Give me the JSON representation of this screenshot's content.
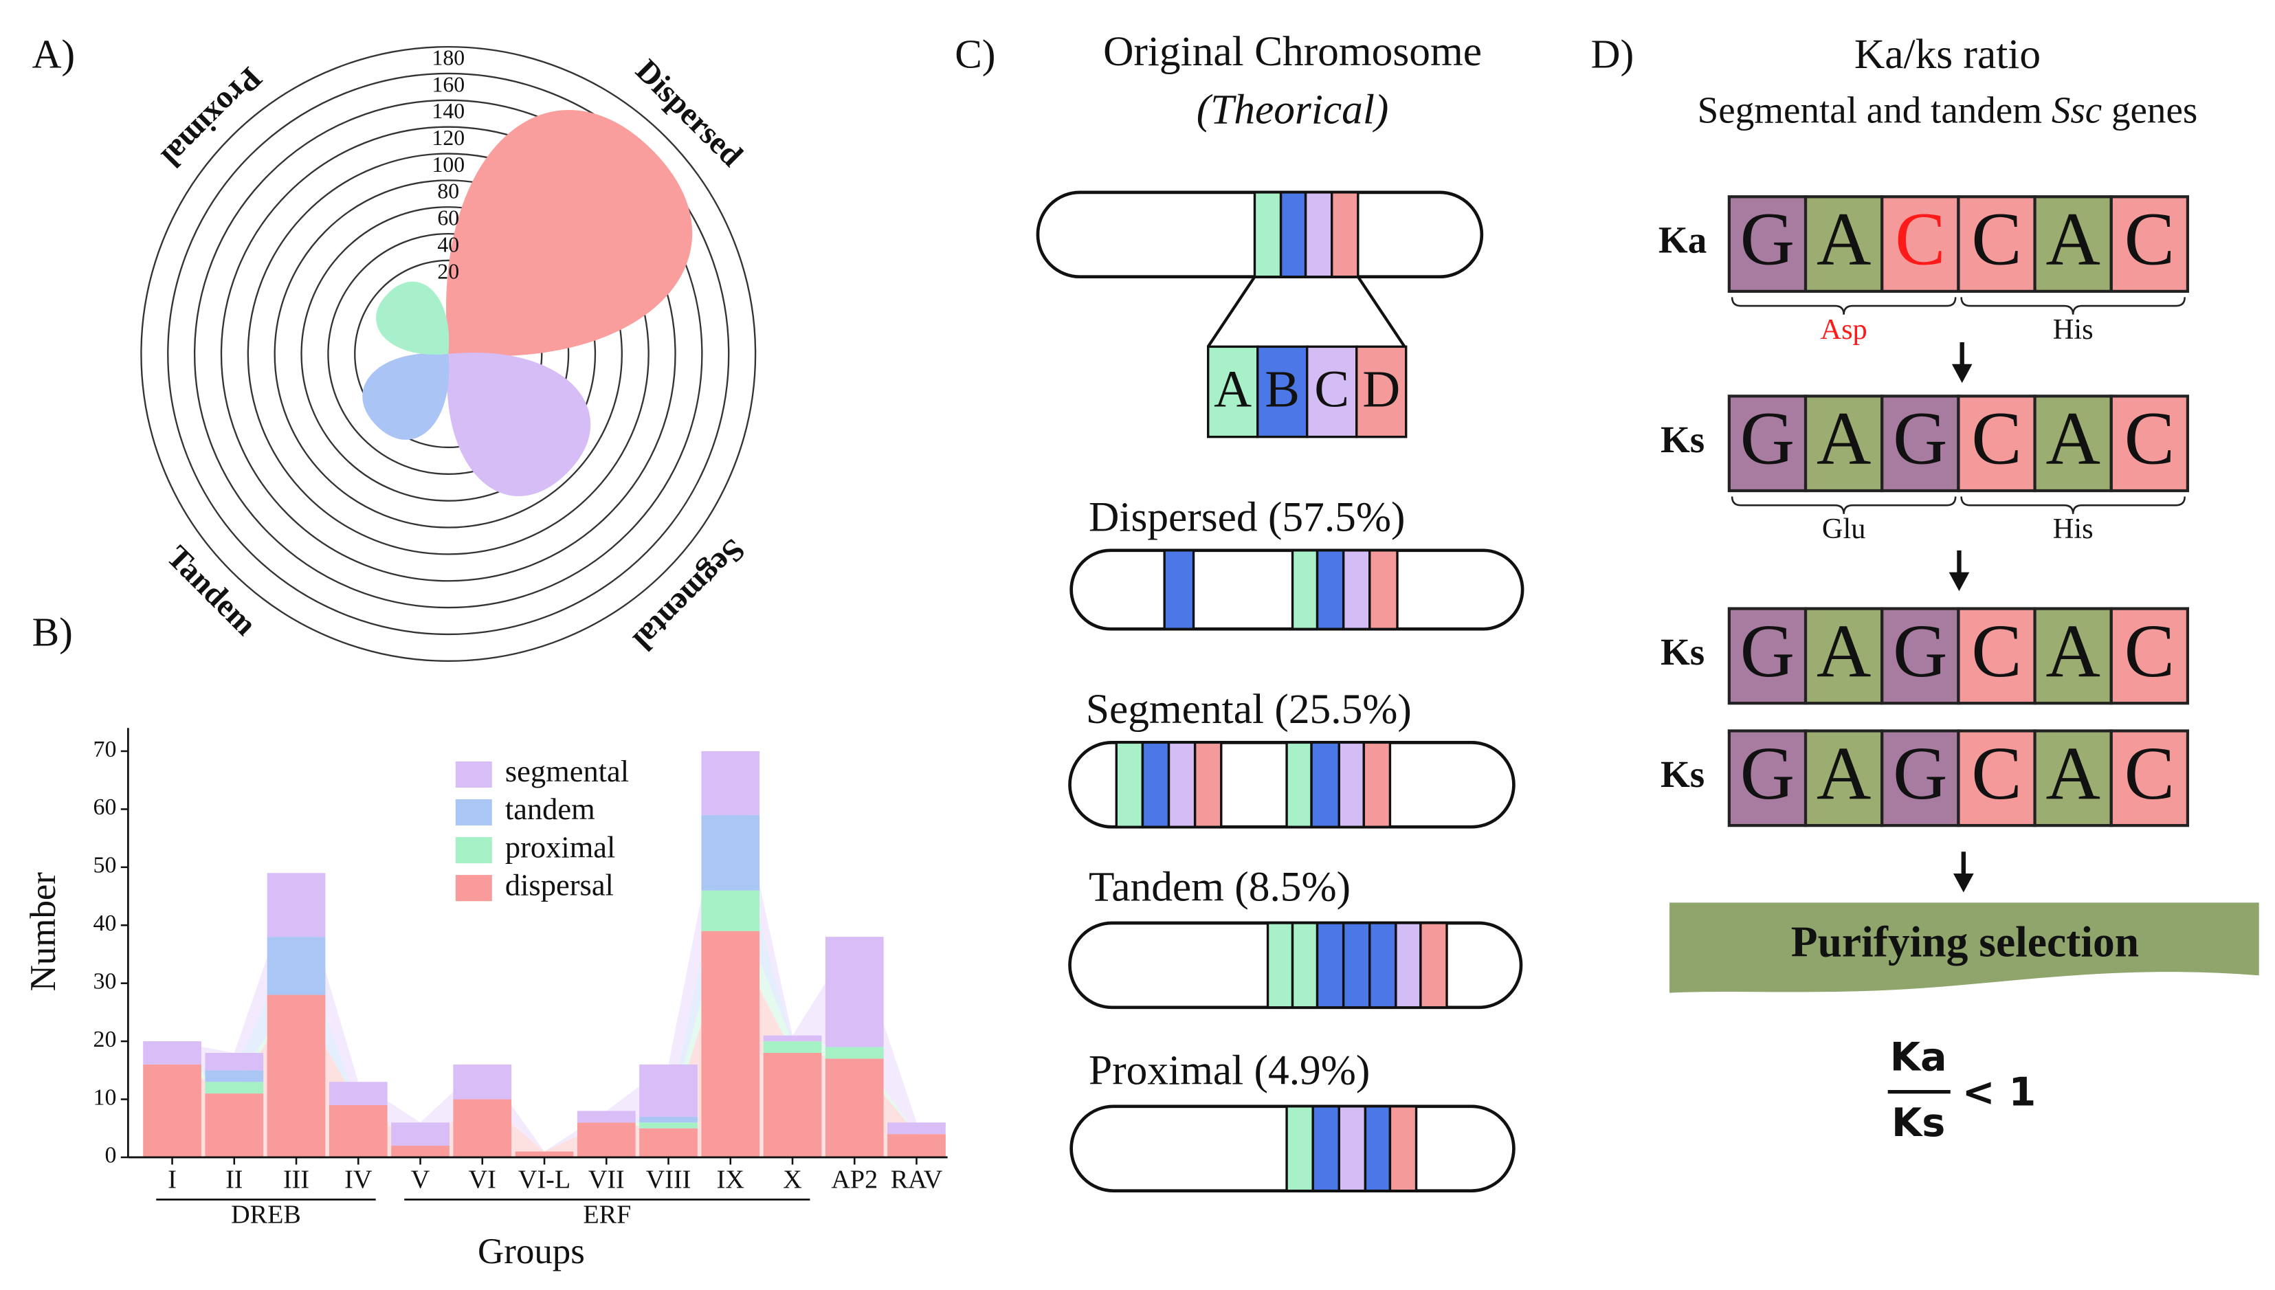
{
  "panel_labels": [
    "A)",
    "B)",
    "C)",
    "D)"
  ],
  "chart_data": [
    {
      "type": "rose",
      "categories": [
        "Dispersed",
        "Segmental",
        "Tandem",
        "Proximal"
      ],
      "values": [
        166,
        76,
        26,
        14
      ],
      "colors": [
        "#f99e9c",
        "#d6bdf6",
        "#a9c4f5",
        "#a8f0cc"
      ],
      "ylim": [
        -50,
        180
      ],
      "yticks": [
        20,
        40,
        60,
        80,
        100,
        120,
        140,
        160,
        180
      ]
    },
    {
      "type": "stacked_bar",
      "xlabel": "Groups",
      "ylabel": "Number",
      "categories": [
        "I",
        "II",
        "III",
        "IV",
        "V",
        "VI",
        "VI-L",
        "VII",
        "VIII",
        "IX",
        "X",
        "AP2",
        "RAV"
      ],
      "category_groups": [
        {
          "label": "DREB",
          "first": "I",
          "last": "IV"
        },
        {
          "label": "ERF",
          "first": "V",
          "last": "X"
        }
      ],
      "series": [
        {
          "name": "dispersal",
          "color": "#f99b9b",
          "values": [
            16,
            11,
            28,
            9,
            2,
            10,
            1,
            6,
            5,
            39,
            18,
            17,
            4
          ]
        },
        {
          "name": "proximal",
          "color": "#a6f0c6",
          "values": [
            0,
            2,
            0,
            0,
            0,
            0,
            0,
            0,
            1,
            7,
            2,
            2,
            0
          ]
        },
        {
          "name": "tandem",
          "color": "#a9c6f5",
          "values": [
            0,
            2,
            10,
            0,
            0,
            0,
            0,
            0,
            1,
            13,
            0,
            0,
            0
          ]
        },
        {
          "name": "segmental",
          "color": "#d8bdf7",
          "values": [
            4,
            3,
            11,
            4,
            4,
            6,
            0,
            2,
            9,
            11,
            1,
            19,
            2
          ]
        }
      ],
      "ylim": [
        0,
        74
      ],
      "yticks": [
        0,
        10,
        20,
        30,
        40,
        50,
        60,
        70
      ],
      "legend": "upper right"
    }
  ],
  "panel_c": {
    "title": "Original Chromosome",
    "subtitle": "(Theorical)",
    "segments": [
      "A",
      "B",
      "C",
      "D"
    ],
    "rows": [
      "Dispersed (57.5%)",
      "Segmental (25.5%)",
      "Tandem (8.5%)",
      "Proximal (4.9%)"
    ]
  },
  "panel_d": {
    "title": "Ka/ks ratio",
    "subtitle": [
      "Segmental and tandem ",
      "Ssc",
      " genes"
    ],
    "rows": [
      {
        "label": "Ka",
        "letters": [
          "G",
          "A",
          "C",
          "C",
          "A",
          "C"
        ],
        "codons": [
          "Asp",
          "His"
        ]
      },
      {
        "label": "Ks",
        "letters": [
          "G",
          "A",
          "G",
          "C",
          "A",
          "C"
        ],
        "codons": [
          "Glu",
          "His"
        ]
      },
      {
        "label": "Ks",
        "letters": [
          "G",
          "A",
          "G",
          "C",
          "A",
          "C"
        ]
      },
      {
        "label": "Ks",
        "letters": [
          "G",
          "A",
          "G",
          "C",
          "A",
          "C"
        ]
      }
    ],
    "conclusion": "Purifying selection",
    "numerator": "Ka",
    "denominator": "Ks",
    "relation": "< 1"
  }
}
